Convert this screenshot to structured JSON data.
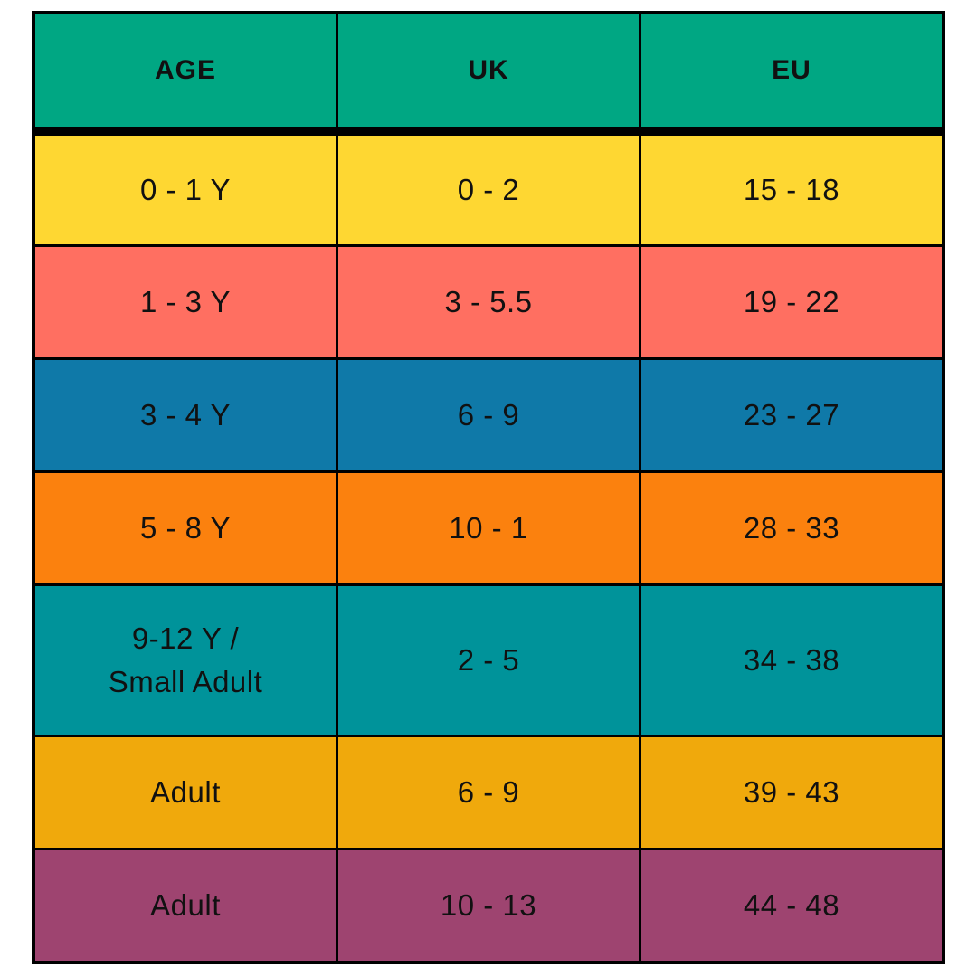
{
  "chart_data": {
    "type": "table",
    "columns": [
      {
        "key": "age",
        "label": "AGE"
      },
      {
        "key": "uk",
        "label": "UK"
      },
      {
        "key": "eu",
        "label": "EU"
      }
    ],
    "header_bg": "#00A783",
    "border_color": "#000000",
    "text_color": "#111111",
    "rows": [
      {
        "age": "0 - 1 Y",
        "uk": "0 - 2",
        "eu": "15 - 18",
        "bg": "#FED732"
      },
      {
        "age": "1 - 3 Y",
        "uk": "3 - 5.5",
        "eu": "19 - 22",
        "bg": "#FF6F61"
      },
      {
        "age": "3 - 4 Y",
        "uk": "6 - 9",
        "eu": "23 - 27",
        "bg": "#0F79A8"
      },
      {
        "age": "5 - 8 Y",
        "uk": "10 - 1",
        "eu": "28 - 33",
        "bg": "#FB810E"
      },
      {
        "age": "9-12 Y /\nSmall Adult",
        "uk": "2 - 5",
        "eu": "34 - 38",
        "bg": "#00939A"
      },
      {
        "age": "Adult",
        "uk": "6 - 9",
        "eu": "39 - 43",
        "bg": "#F0A90C"
      },
      {
        "age": "Adult",
        "uk": "10 - 13",
        "eu": "44 - 48",
        "bg": "#9E4470"
      }
    ]
  }
}
